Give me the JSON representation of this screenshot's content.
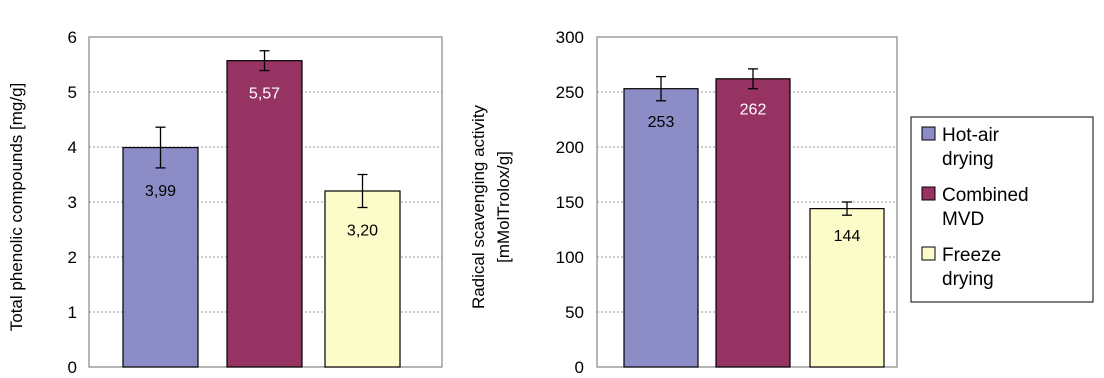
{
  "colors": {
    "hot_air": "#8c8dc6",
    "combined": "#963363",
    "freeze": "#fcfccb"
  },
  "legend": [
    {
      "line1": "Hot-air",
      "line2": "drying",
      "color_key": "hot_air"
    },
    {
      "line1": "Combined",
      "line2": "MVD",
      "color_key": "combined"
    },
    {
      "line1": "Freeze",
      "line2": "drying",
      "color_key": "freeze"
    }
  ],
  "chart_data": [
    {
      "type": "bar",
      "title": "",
      "ylabel": "Total phenolic compounds [mg/g]",
      "ylim": [
        0,
        6
      ],
      "yticks": [
        "0",
        "1",
        "2",
        "3",
        "4",
        "5",
        "6"
      ],
      "grid": true,
      "categories": [
        "Hot-air drying",
        "Combined MVD",
        "Freeze drying"
      ],
      "values": [
        3.99,
        5.57,
        3.2
      ],
      "errors": [
        0.37,
        0.18,
        0.3
      ],
      "value_labels": [
        "3,99",
        "5,57",
        "3,20"
      ],
      "label_colors": [
        "#000000",
        "#ffffff",
        "#000000"
      ]
    },
    {
      "type": "bar",
      "title": "",
      "ylabel_line1": "Radical scavenging activity",
      "ylabel_line2": "[mMolTrolox/g]",
      "ylim": [
        0,
        300
      ],
      "yticks": [
        "0",
        "50",
        "100",
        "150",
        "200",
        "250",
        "300"
      ],
      "grid": true,
      "categories": [
        "Hot-air drying",
        "Combined MVD",
        "Freeze drying"
      ],
      "values": [
        253,
        262,
        144
      ],
      "errors": [
        11,
        9,
        6
      ],
      "value_labels": [
        "253",
        "262",
        "144"
      ],
      "label_colors": [
        "#000000",
        "#ffffff",
        "#000000"
      ]
    }
  ]
}
